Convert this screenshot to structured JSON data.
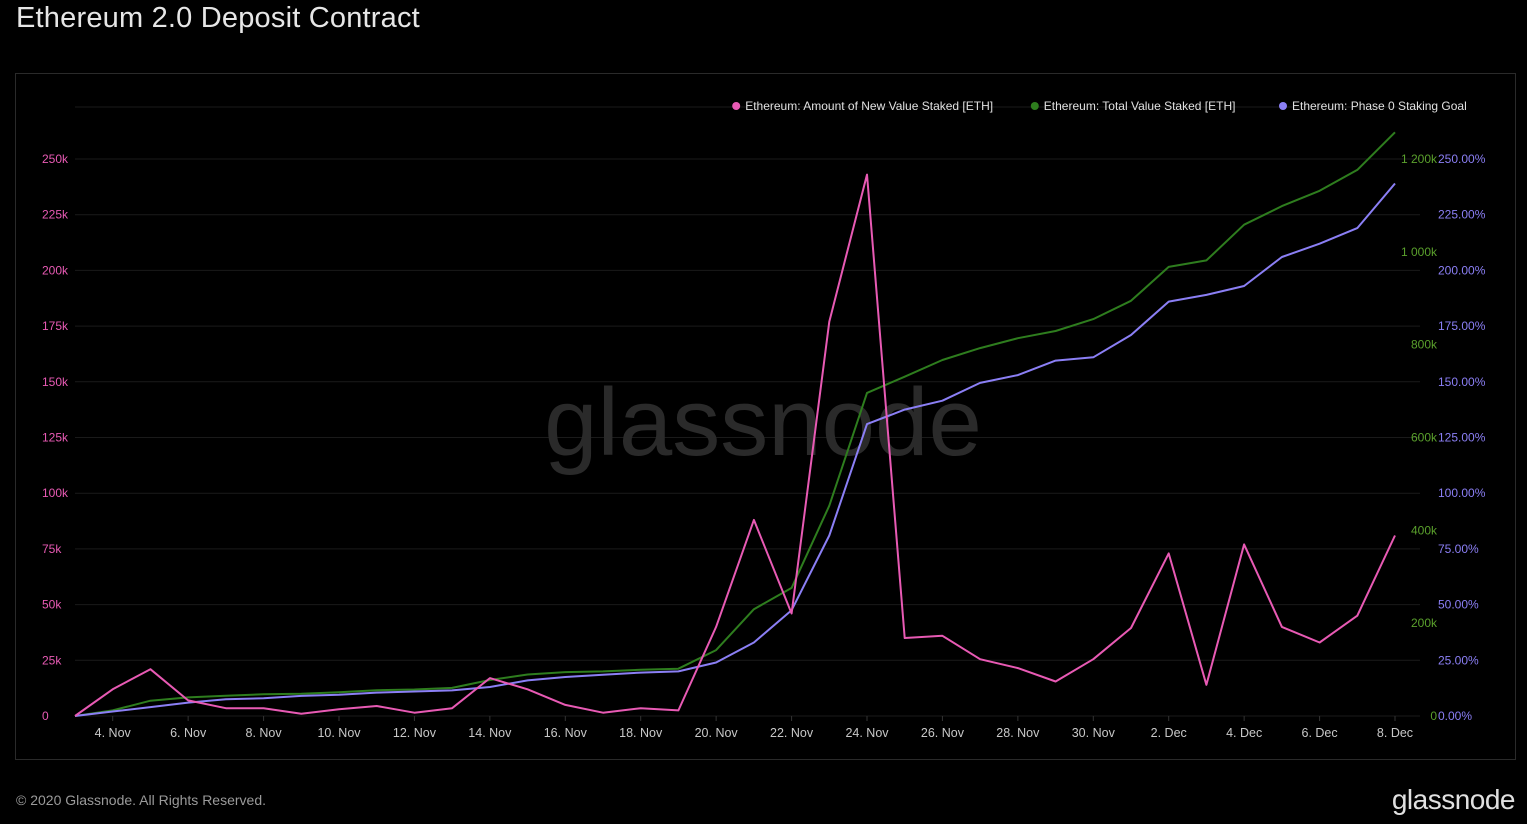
{
  "title": "Ethereum 2.0 Deposit Contract",
  "footer": "© 2020 Glassnode. All Rights Reserved.",
  "brand": "glassnode",
  "watermark": "glassnode",
  "colors": {
    "new_value": "#e85ab4",
    "total_value": "#2e7d1e",
    "goal": "#8b7ff5",
    "grid": "#1a1a1a",
    "axis_left": "#e85ab4",
    "axis_mid": "#5aa02c",
    "axis_right": "#8b7ff5"
  },
  "chart_data": {
    "type": "line",
    "x": [
      "3. Nov",
      "4. Nov",
      "5. Nov",
      "6. Nov",
      "7. Nov",
      "8. Nov",
      "9. Nov",
      "10. Nov",
      "11. Nov",
      "12. Nov",
      "13. Nov",
      "14. Nov",
      "15. Nov",
      "16. Nov",
      "17. Nov",
      "18. Nov",
      "19. Nov",
      "20. Nov",
      "21. Nov",
      "22. Nov",
      "23. Nov",
      "24. Nov",
      "25. Nov",
      "26. Nov",
      "27. Nov",
      "28. Nov",
      "29. Nov",
      "30. Nov",
      "1. Dec",
      "2. Dec",
      "3. Dec",
      "4. Dec",
      "5. Dec",
      "6. Dec",
      "7. Dec",
      "8. Dec"
    ],
    "x_tick_labels": [
      "4. Nov",
      "6. Nov",
      "8. Nov",
      "10. Nov",
      "12. Nov",
      "14. Nov",
      "16. Nov",
      "18. Nov",
      "20. Nov",
      "22. Nov",
      "24. Nov",
      "26. Nov",
      "28. Nov",
      "30. Nov",
      "2. Dec",
      "4. Dec",
      "6. Dec",
      "8. Dec"
    ],
    "series": [
      {
        "name": "Ethereum: Amount of New Value Staked [ETH]",
        "axis": "left",
        "values": [
          0,
          12000,
          21000,
          7000,
          3500,
          3500,
          1000,
          3000,
          4500,
          1500,
          3500,
          17000,
          12000,
          5000,
          1500,
          3500,
          2500,
          40000,
          88000,
          46000,
          177000,
          243000,
          35000,
          36000,
          25500,
          21500,
          15500,
          25500,
          39500,
          73000,
          14000,
          77000,
          40000,
          33000,
          45000,
          81000
        ]
      },
      {
        "name": "Ethereum: Total Value Staked [ETH]",
        "axis": "mid",
        "values": [
          0,
          12000,
          33000,
          40000,
          43500,
          47000,
          48000,
          51000,
          55500,
          57000,
          60500,
          77500,
          89500,
          94500,
          96000,
          99500,
          102000,
          142000,
          230000,
          276000,
          453000,
          696000,
          731000,
          767000,
          792500,
          814000,
          829500,
          855000,
          894500,
          967500,
          981500,
          1058500,
          1098500,
          1131500,
          1176500,
          1257500
        ]
      },
      {
        "name": "Ethereum: Phase 0 Staking Goal",
        "axis": "right",
        "values": [
          0,
          2,
          4,
          6,
          7.5,
          8,
          9,
          9.5,
          10.5,
          11,
          11.5,
          13,
          16,
          17.5,
          18.5,
          19.5,
          20,
          24,
          33,
          47.5,
          81,
          131,
          137.5,
          141.5,
          149.5,
          153,
          159.5,
          161,
          171,
          186,
          189,
          193,
          206,
          212,
          219,
          239
        ]
      }
    ],
    "axes": {
      "left": {
        "range": [
          0,
          250000
        ],
        "ticks": [
          "0",
          "25k",
          "50k",
          "75k",
          "100k",
          "125k",
          "150k",
          "175k",
          "200k",
          "225k",
          "250k"
        ]
      },
      "mid": {
        "range": [
          0,
          1200000
        ],
        "ticks": [
          "0",
          "200k",
          "400k",
          "600k",
          "800k",
          "1 000k",
          "1 200k"
        ]
      },
      "right": {
        "range": [
          0,
          250
        ],
        "ticks": [
          "0.00%",
          "25.00%",
          "50.00%",
          "75.00%",
          "100.00%",
          "125.00%",
          "150.00%",
          "175.00%",
          "200.00%",
          "225.00%",
          "250.00%"
        ]
      }
    },
    "grid": true,
    "legend_position": "top-right"
  }
}
